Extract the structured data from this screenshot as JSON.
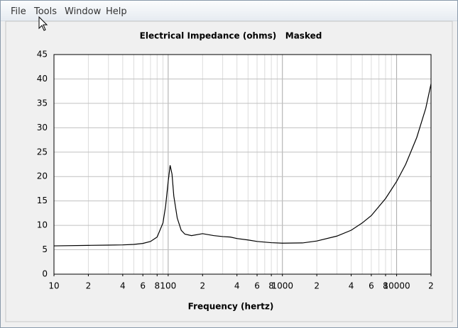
{
  "menu": [
    "File",
    "Tools",
    "Window",
    "Help"
  ],
  "chart_data": {
    "type": "line",
    "title": "Electrical Impedance (ohms)   Masked",
    "x_label": "Frequency (hertz)",
    "x_scale": "log",
    "x": [
      10,
      20,
      30,
      40,
      50,
      60,
      70,
      80,
      90,
      95,
      100,
      104,
      108,
      112,
      120,
      130,
      140,
      160,
      200,
      250,
      300,
      350,
      400,
      500,
      600,
      800,
      1000,
      1500,
      2000,
      3000,
      4000,
      5000,
      6000,
      8000,
      10000,
      12000,
      15000,
      18000,
      20000
    ],
    "values": [
      5.8,
      5.9,
      5.95,
      6.0,
      6.1,
      6.3,
      6.7,
      7.6,
      10.5,
      14,
      19,
      22.3,
      20.5,
      16,
      11.5,
      9,
      8.2,
      7.9,
      8.3,
      7.9,
      7.7,
      7.6,
      7.3,
      7.0,
      6.7,
      6.45,
      6.35,
      6.4,
      6.8,
      7.8,
      9.0,
      10.5,
      12.0,
      15.5,
      19,
      22.5,
      28,
      34,
      39
    ],
    "color": "#000000",
    "xlim": [
      10,
      20000
    ],
    "xticks": [
      10,
      {
        "value": 20,
        "label": "2"
      },
      {
        "value": 40,
        "label": "4"
      },
      {
        "value": 60,
        "label": "6"
      },
      {
        "value": 80,
        "label": "8"
      },
      100,
      {
        "value": 200,
        "label": "2"
      },
      {
        "value": 400,
        "label": "4"
      },
      {
        "value": 600,
        "label": "6"
      },
      {
        "value": 800,
        "label": "8"
      },
      1000,
      {
        "value": 2000,
        "label": "2"
      },
      {
        "value": 4000,
        "label": "4"
      },
      {
        "value": 6000,
        "label": "6"
      },
      {
        "value": 8000,
        "label": "8"
      },
      10000,
      {
        "value": 20000,
        "label": "2"
      }
    ],
    "ylim": [
      0,
      45
    ],
    "yticks": [
      0,
      5,
      10,
      15,
      20,
      25,
      30,
      35,
      40,
      45
    ],
    "grid": true
  }
}
